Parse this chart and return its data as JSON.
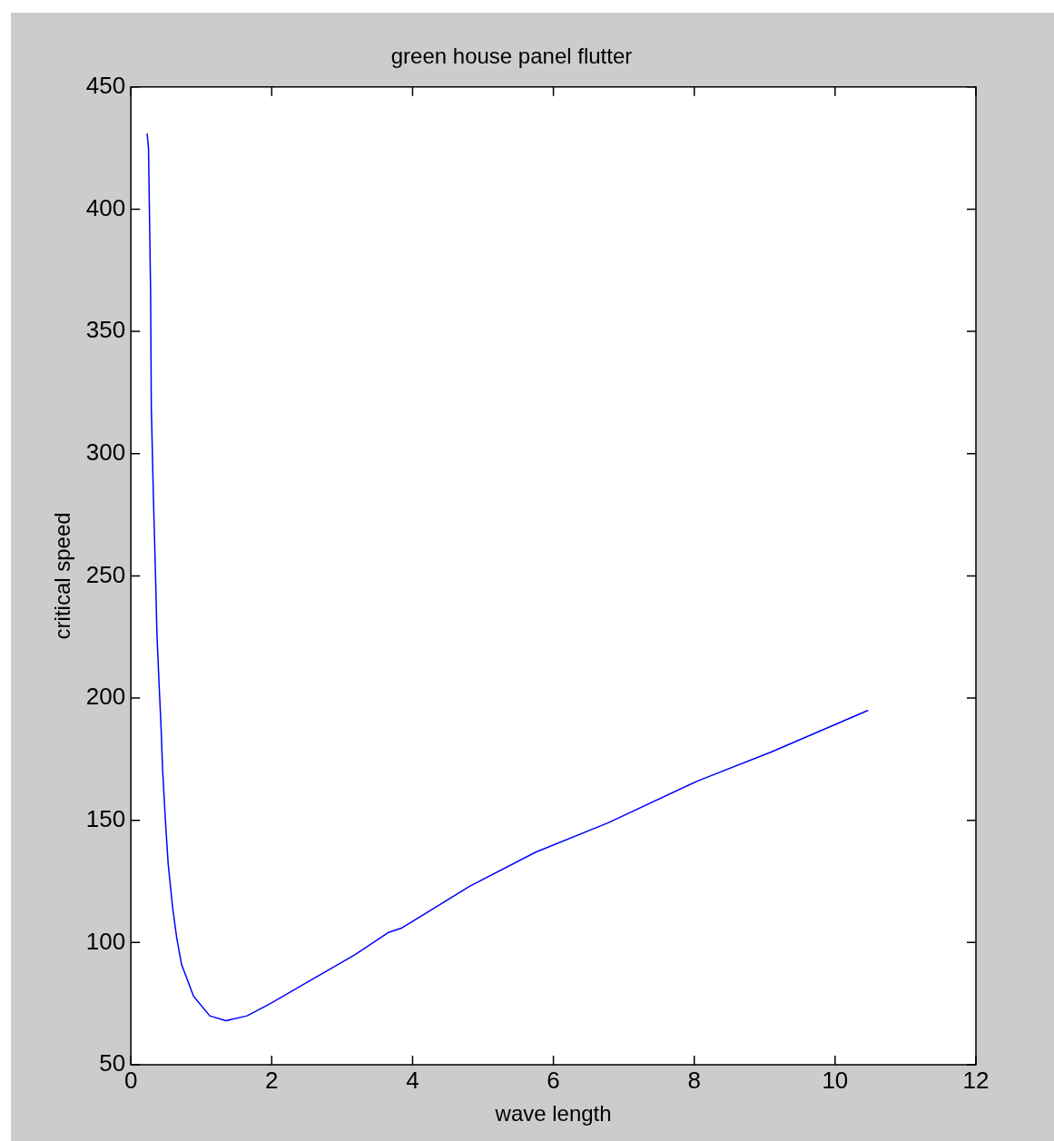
{
  "chart_data": {
    "type": "line",
    "title": "green house panel flutter",
    "xlabel": "wave length",
    "ylabel": "critical speed",
    "x": [
      0.23,
      0.25,
      0.28,
      0.29,
      0.32,
      0.35,
      0.37,
      0.4,
      0.43,
      0.45,
      0.49,
      0.53,
      0.59,
      0.65,
      0.72,
      0.89,
      1.12,
      1.35,
      1.65,
      1.98,
      2.52,
      3.18,
      3.65,
      3.85,
      4.81,
      5.75,
      6.78,
      8.04,
      9.1,
      10.47
    ],
    "series": [
      {
        "color": "#0000ff",
        "values": [
          431,
          425,
          366,
          319,
          282,
          250,
          226,
          206,
          187,
          171,
          150,
          132,
          115,
          102,
          91,
          78,
          70,
          68,
          70,
          75,
          84,
          95,
          104,
          106,
          123,
          137,
          149,
          166,
          178,
          195
        ]
      }
    ],
    "xlim": [
      0,
      12
    ],
    "xticks": [
      0,
      2,
      4,
      6,
      8,
      10,
      12
    ],
    "ylim": [
      50,
      450
    ],
    "yticks": [
      50,
      100,
      150,
      200,
      250,
      300,
      350,
      400,
      450
    ],
    "grid": false,
    "legend": false,
    "marker": "none",
    "line_style": "solid"
  }
}
